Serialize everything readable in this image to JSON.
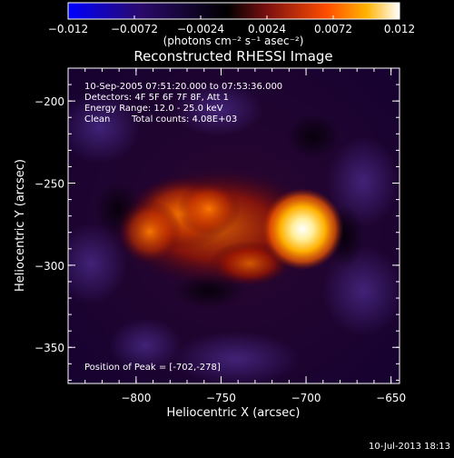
{
  "chart_data": {
    "type": "heatmap",
    "title": "Reconstructed RHESSI Image",
    "xlabel": "Heliocentric X (arcsec)",
    "ylabel": "Heliocentric Y (arcsec)",
    "xlim": [
      -840,
      -645
    ],
    "ylim": [
      -372,
      -180
    ],
    "x_ticks": [
      "-800",
      "-750",
      "-700",
      "-650"
    ],
    "y_ticks": [
      "-200",
      "-250",
      "-300",
      "-350"
    ],
    "colorbar": {
      "range": [
        -0.012,
        0.012
      ],
      "tick_labels": [
        "-0.012",
        "-0.0072",
        "-0.0024",
        "0.0024",
        "0.0072",
        "0.012"
      ],
      "units_label": "(photons cm⁻² s⁻¹ asec⁻²)",
      "colors": [
        "#0000ff",
        "#2a0a6a",
        "#000000",
        "#7a1010",
        "#ff4d00",
        "#ffb300",
        "#ffffff"
      ]
    },
    "annotations": [
      "10-Sep-2005 07:51:20.000 to 07:53:36.000",
      "Detectors: 4F 5F 6F 7F 8F, Att 1",
      "Energy Range: 12.0 - 25.0 keV",
      "Clean",
      "Total counts: 4.08E+03"
    ],
    "peak_label": "Position of Peak = [-702,-278]",
    "peak": {
      "x": -702,
      "y": -278,
      "value": 0.012
    }
  },
  "footer": {
    "date": "10-Jul-2013 18:13"
  }
}
